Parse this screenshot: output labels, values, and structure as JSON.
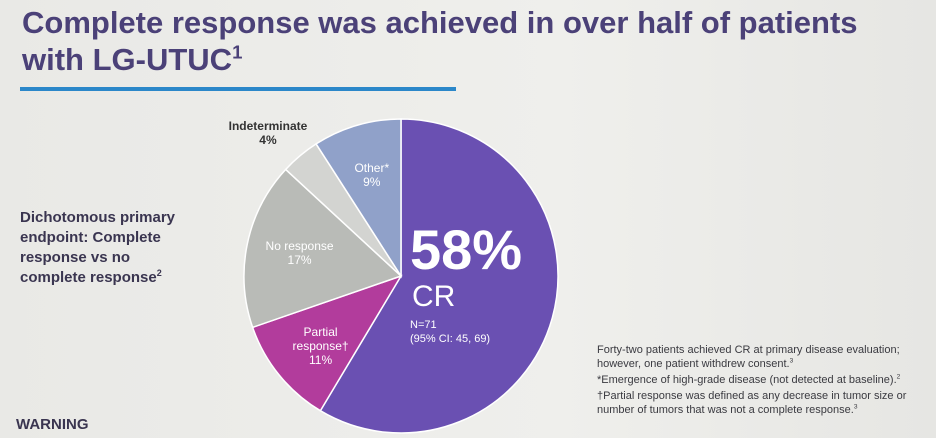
{
  "chart_data": {
    "type": "pie",
    "title": "Complete response was achieved in over half of patients with LG-UTUC",
    "title_ref": "1",
    "categories": [
      "CR",
      "Partial response†",
      "No response",
      "Indeterminate",
      "Other*"
    ],
    "values": [
      58,
      11,
      17,
      4,
      9
    ],
    "value_labels": [
      "58%",
      "11%",
      "17%",
      "4%",
      "9%"
    ],
    "colors": [
      "#6a50b2",
      "#b23c9c",
      "#b9bbb7",
      "#d3d4d1",
      "#90a1c9"
    ],
    "annotations": {
      "endpoint": "Dichotomous primary endpoint: Complete response vs no complete response",
      "endpoint_ref": "2",
      "n": "N=71",
      "ci": "(95% CI: 45, 69)",
      "warning": "WARNING"
    },
    "footnotes": [
      {
        "text": "Forty-two patients achieved CR at primary disease evaluation; however, one patient withdrew consent.",
        "ref": "3"
      },
      {
        "text": "*Emergence of high-grade disease (not detected at baseline).",
        "ref": "2"
      },
      {
        "text": "†Partial response was defined as any decrease in tumor size or number of tumors that was not a complete response.",
        "ref": "3"
      }
    ]
  }
}
